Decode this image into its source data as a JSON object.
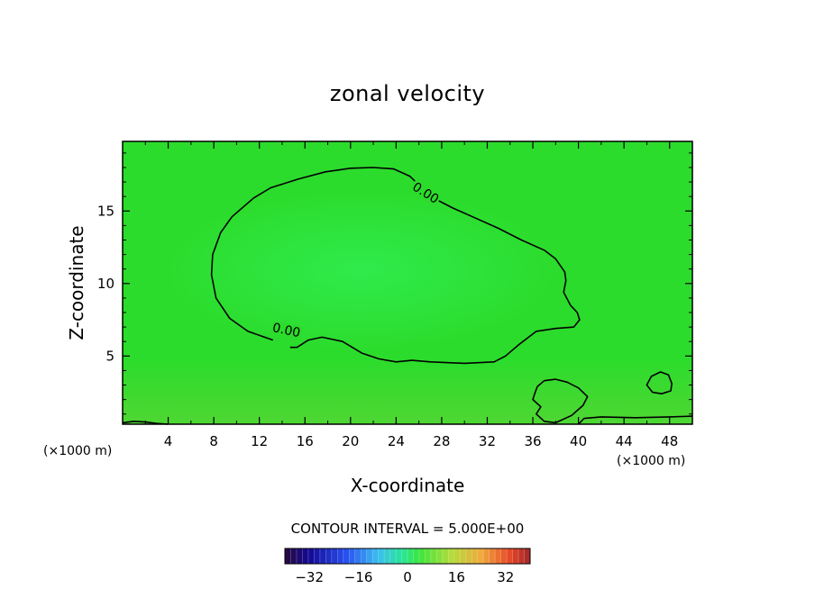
{
  "chart_data": {
    "type": "heatmap",
    "title": "zonal velocity",
    "xlabel": "X-coordinate",
    "ylabel": "Z-coordinate",
    "x_unit": "(×1000 m)",
    "y_unit": "(×1000 m)",
    "xlim": [
      0,
      50
    ],
    "ylim": [
      0.3,
      19.8
    ],
    "x_ticks": [
      4,
      8,
      12,
      16,
      20,
      24,
      28,
      32,
      36,
      40,
      44,
      48
    ],
    "y_ticks": [
      5,
      10,
      15
    ],
    "field_color": "#2cdc2c",
    "contour_interval_text": "CONTOUR INTERVAL = 5.000E+00",
    "contours": [
      {
        "level": 0.0,
        "label": "0.00",
        "points": [
          [
            0.0,
            0.4
          ],
          [
            1.0,
            0.5
          ],
          [
            2.0,
            0.45
          ],
          [
            3.0,
            0.35
          ],
          [
            4.0,
            0.3
          ]
        ],
        "closed": false
      },
      {
        "level": 0.0,
        "label": "0.00",
        "points": [
          [
            13.2,
            6.1
          ],
          [
            11.0,
            6.7
          ],
          [
            9.4,
            7.6
          ],
          [
            8.2,
            9.0
          ],
          [
            7.8,
            10.6
          ],
          [
            7.9,
            12.0
          ],
          [
            8.6,
            13.5
          ],
          [
            9.6,
            14.6
          ],
          [
            11.5,
            15.9
          ],
          [
            13.0,
            16.6
          ],
          [
            15.4,
            17.2
          ],
          [
            17.8,
            17.7
          ],
          [
            20.0,
            17.95
          ],
          [
            22.0,
            18.0
          ],
          [
            23.8,
            17.9
          ],
          [
            25.2,
            17.4
          ],
          [
            26.4,
            16.5
          ],
          [
            27.5,
            15.8
          ],
          [
            29.0,
            15.2
          ],
          [
            31.0,
            14.5
          ],
          [
            33.0,
            13.8
          ],
          [
            35.0,
            13.0
          ],
          [
            37.0,
            12.3
          ],
          [
            38.0,
            11.7
          ],
          [
            38.8,
            10.8
          ],
          [
            38.9,
            10.2
          ],
          [
            38.7,
            9.4
          ],
          [
            39.3,
            8.5
          ],
          [
            39.9,
            8.0
          ],
          [
            40.1,
            7.5
          ],
          [
            39.6,
            7.0
          ],
          [
            38.0,
            6.9
          ],
          [
            36.3,
            6.7
          ],
          [
            34.8,
            5.8
          ],
          [
            33.6,
            5.0
          ],
          [
            32.6,
            4.6
          ],
          [
            30.0,
            4.5
          ],
          [
            27.0,
            4.6
          ],
          [
            25.4,
            4.7
          ],
          [
            24.0,
            4.6
          ],
          [
            22.5,
            4.8
          ],
          [
            21.0,
            5.2
          ],
          [
            19.3,
            6.0
          ],
          [
            17.5,
            6.3
          ],
          [
            16.3,
            6.1
          ],
          [
            15.3,
            5.6
          ],
          [
            14.7,
            5.6
          ]
        ],
        "closed": false
      },
      {
        "level": 0.0,
        "label": "",
        "points": [
          [
            36.2,
            2.5
          ],
          [
            36.0,
            2.0
          ],
          [
            36.7,
            1.5
          ],
          [
            36.3,
            1.0
          ],
          [
            37.0,
            0.5
          ],
          [
            38.0,
            0.4
          ],
          [
            39.4,
            0.9
          ],
          [
            40.4,
            1.6
          ],
          [
            40.8,
            2.2
          ],
          [
            40.0,
            2.8
          ],
          [
            39.0,
            3.2
          ],
          [
            38.0,
            3.4
          ],
          [
            37.0,
            3.3
          ],
          [
            36.4,
            2.9
          ]
        ],
        "closed": true
      },
      {
        "level": 0.0,
        "label": "",
        "points": [
          [
            46.0,
            3.0
          ],
          [
            46.4,
            3.6
          ],
          [
            47.2,
            3.9
          ],
          [
            47.9,
            3.7
          ],
          [
            48.2,
            3.1
          ],
          [
            48.1,
            2.6
          ],
          [
            47.3,
            2.4
          ],
          [
            46.5,
            2.5
          ]
        ],
        "closed": true
      },
      {
        "level": 0.0,
        "label": "",
        "points": [
          [
            40.0,
            0.3
          ],
          [
            40.5,
            0.7
          ],
          [
            42.0,
            0.8
          ],
          [
            45.0,
            0.75
          ],
          [
            48.0,
            0.8
          ],
          [
            50.0,
            0.85
          ]
        ],
        "closed": false
      }
    ],
    "colorbar": {
      "ticks": [
        -32,
        -16,
        0,
        16,
        32
      ],
      "range": [
        -40,
        40
      ]
    }
  }
}
